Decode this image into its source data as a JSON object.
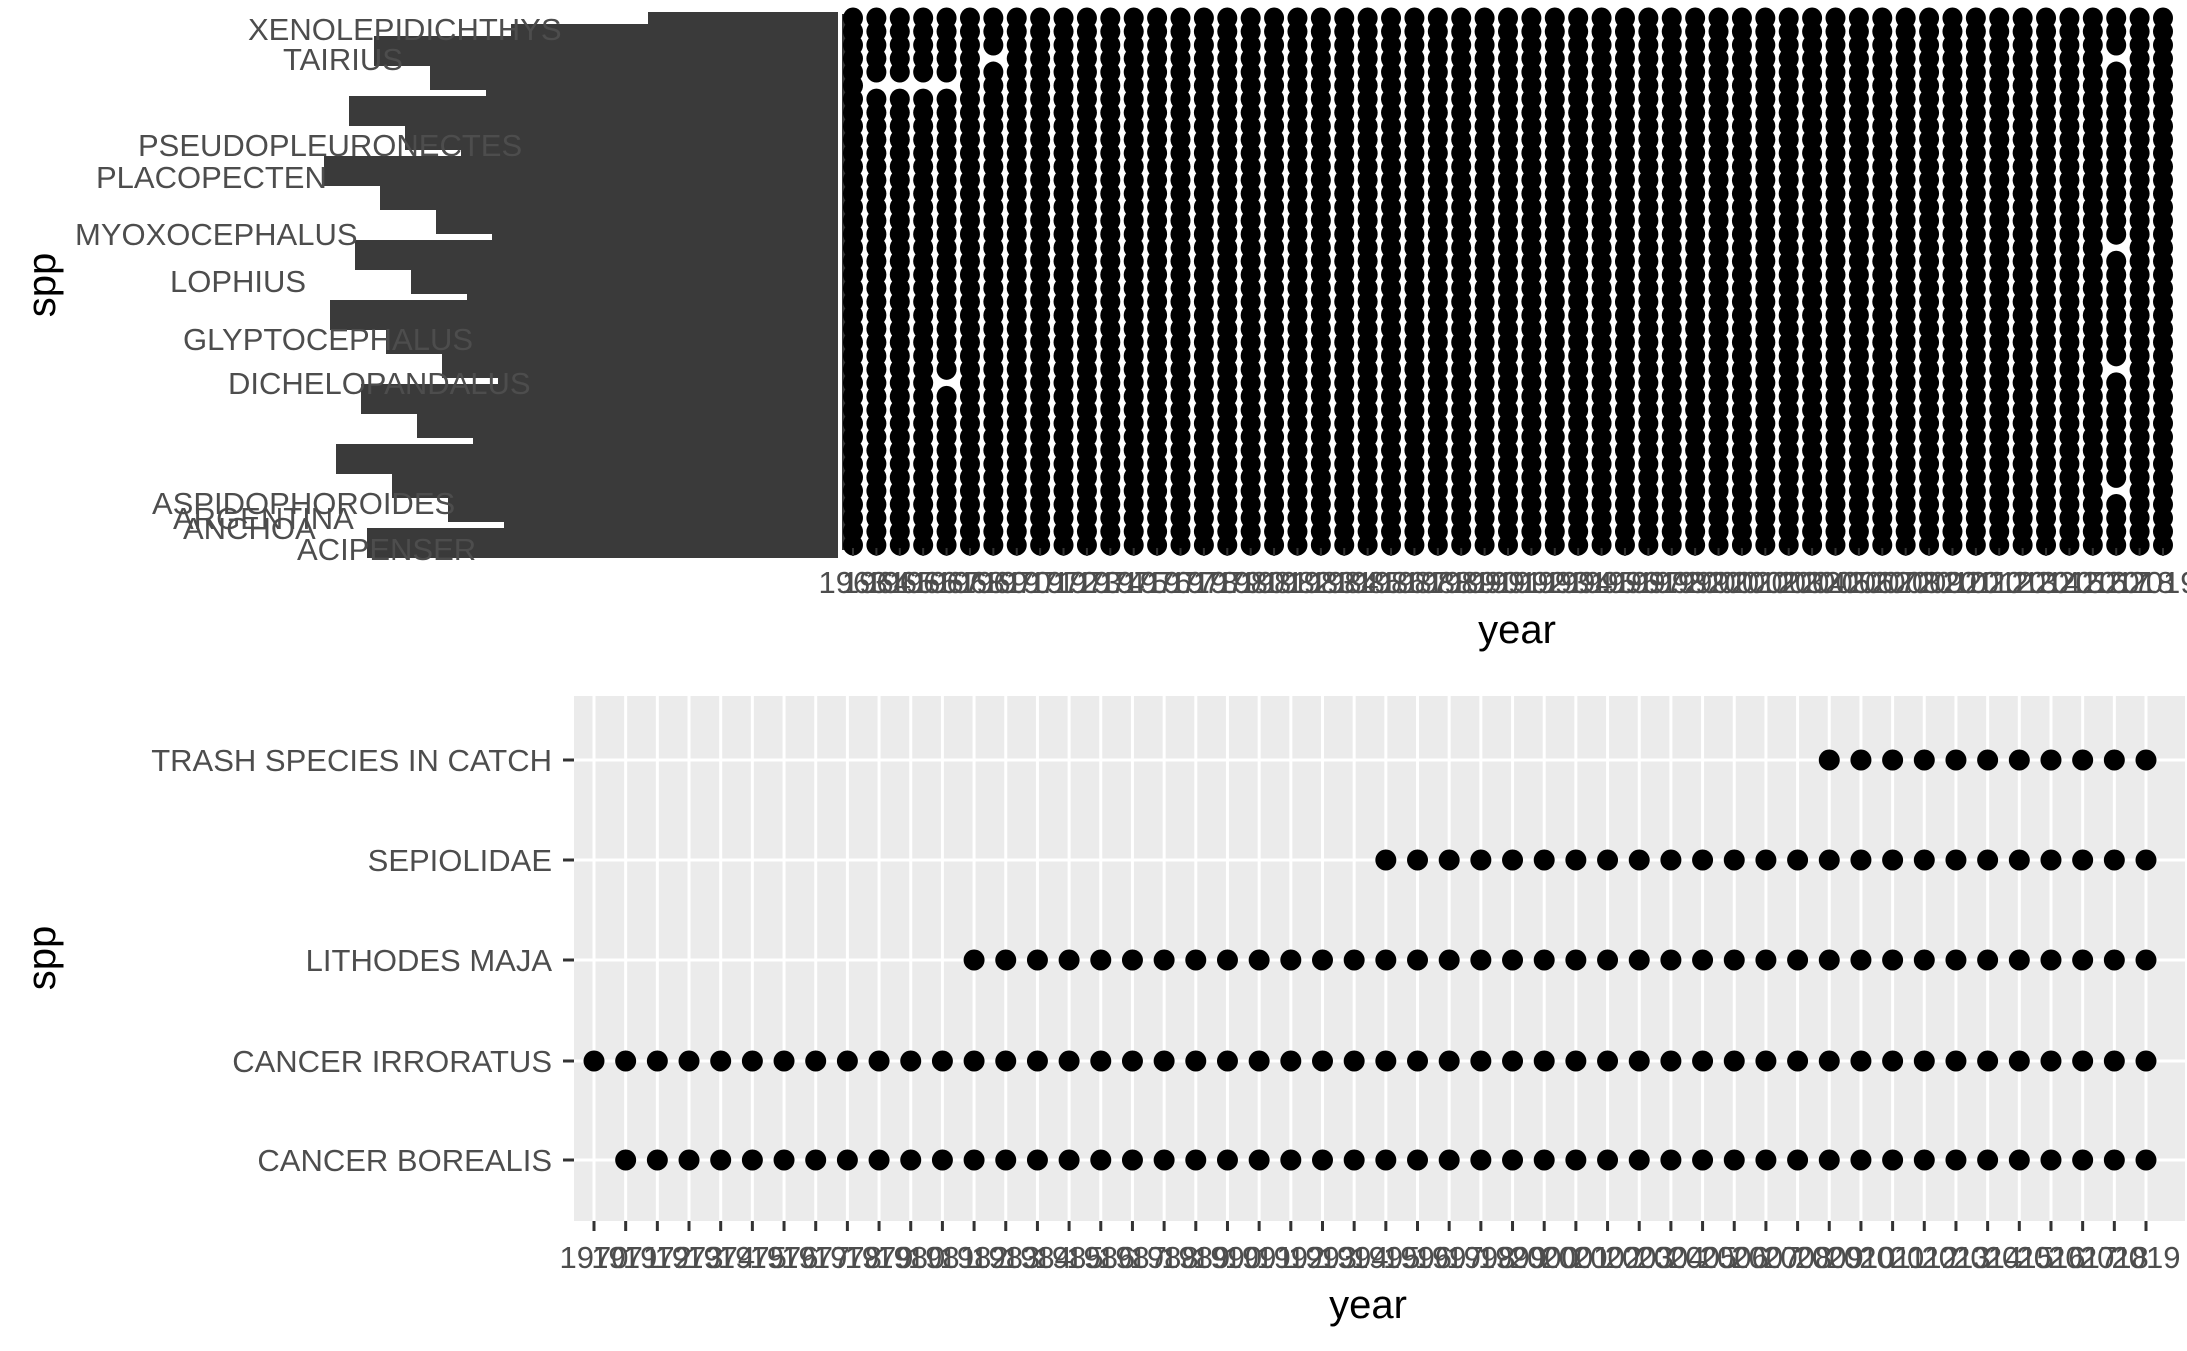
{
  "chart_data": [
    {
      "type": "scatter",
      "title": "",
      "xlabel": "year",
      "ylabel": "spp",
      "x_start": 1963,
      "x_end": 2019,
      "x_tick_labels": [
        "1963",
        "1964",
        "1965",
        "1966",
        "1967",
        "1968",
        "1969",
        "1970",
        "1971",
        "1972",
        "1973",
        "1974",
        "1975",
        "1976",
        "1977",
        "1978",
        "1979",
        "1980",
        "1981",
        "1982",
        "1983",
        "1984",
        "1985",
        "1986",
        "1987",
        "1988",
        "1989",
        "1990",
        "1991",
        "1992",
        "1993",
        "1994",
        "1995",
        "1996",
        "1997",
        "1998",
        "1999",
        "2000",
        "2001",
        "2002",
        "2003",
        "2004",
        "2005",
        "2006",
        "2007",
        "2008",
        "2009",
        "2010",
        "2011",
        "2012",
        "2013",
        "2014",
        "2015",
        "2016",
        "2017",
        "2018",
        "2019"
      ],
      "y_categories_legible": [
        "XENOLEPIDICHTHYS",
        "TAIRIUS",
        "PSEUDOPLEURONECTES",
        "PLACOPECTEN",
        "MYOXOCEPHALUS",
        "LOPHIUS",
        "GLYPTOCEPHALUS",
        "DICHELOPANDALUS",
        "ASPIDOPHOROIDES",
        "ARGENTINA",
        "ANCHOA",
        "ACIPENSER"
      ],
      "y_category_count": 40,
      "note": "overplotted; y-axis labels overlap and are mostly illegible; most cells filled",
      "absent_cells": [
        {
          "x": 1964,
          "y_row_index": 34
        },
        {
          "x": 1965,
          "y_row_index": 34
        },
        {
          "x": 1966,
          "y_row_index": 34
        },
        {
          "x": 1967,
          "y_row_index": 34
        },
        {
          "x": 1967,
          "y_row_index": 12
        },
        {
          "x": 1969,
          "y_row_index": 36
        },
        {
          "x": 2017,
          "y_row_index": 36
        },
        {
          "x": 2017,
          "y_row_index": 22
        },
        {
          "x": 2017,
          "y_row_index": 13
        },
        {
          "x": 2017,
          "y_row_index": 4
        }
      ]
    },
    {
      "type": "scatter",
      "title": "",
      "xlabel": "year",
      "ylabel": "spp",
      "x_start": 1970,
      "x_end": 2019,
      "x_tick_labels": [
        "1970",
        "1971",
        "1972",
        "1973",
        "1974",
        "1975",
        "1976",
        "1977",
        "1978",
        "1979",
        "1980",
        "1981",
        "1982",
        "1983",
        "1984",
        "1985",
        "1986",
        "1987",
        "1988",
        "1989",
        "1990",
        "1991",
        "1992",
        "1993",
        "1994",
        "1995",
        "1996",
        "1997",
        "1998",
        "1999",
        "2000",
        "2001",
        "2002",
        "2003",
        "2004",
        "2005",
        "2006",
        "2007",
        "2008",
        "2009",
        "2010",
        "2011",
        "2012",
        "2013",
        "2014",
        "2015",
        "2016",
        "2017",
        "2018",
        "2019"
      ],
      "categories": [
        "CANCER BOREALIS",
        "CANCER IRRORATUS",
        "LITHODES MAJA",
        "SEPIOLIDAE",
        "TRASH SPECIES IN CATCH"
      ],
      "series": [
        {
          "category": "TRASH SPECIES IN CATCH",
          "years_from": 2009,
          "years_to": 2019
        },
        {
          "category": "SEPIOLIDAE",
          "years_from": 1995,
          "years_to": 2019
        },
        {
          "category": "LITHODES MAJA",
          "years_from": 1982,
          "years_to": 2019
        },
        {
          "category": "CANCER IRRORATUS",
          "years_from": 1970,
          "years_to": 2019
        },
        {
          "category": "CANCER BOREALIS",
          "years_from": 1971,
          "years_to": 2019
        }
      ],
      "grid": true,
      "panel_background": "#ebebeb",
      "point_color": "#000000"
    }
  ],
  "colors": {
    "top_panel_fill": "#000000",
    "bottom_panel_background": "#ebebeb",
    "grid_line": "#ffffff",
    "tick_label": "#4d4d4d",
    "axis_title": "#000000"
  }
}
